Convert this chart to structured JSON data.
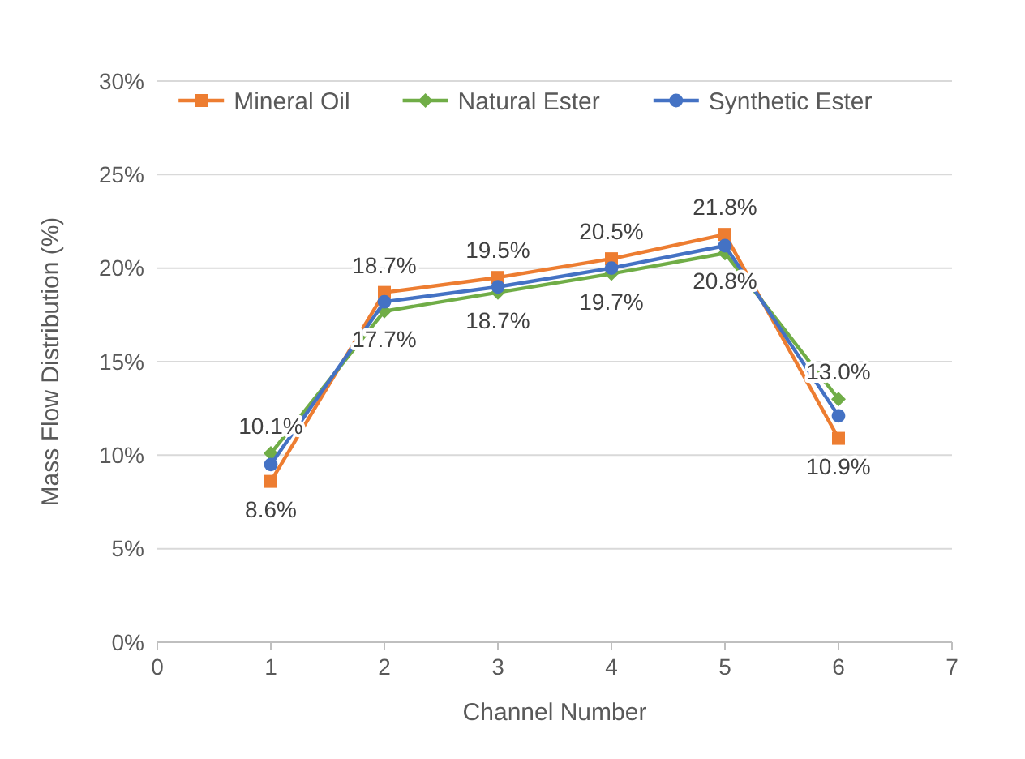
{
  "chart_data": {
    "type": "line",
    "xlabel": "Channel Number",
    "ylabel": "Mass Flow Distribution (%)",
    "x": [
      1,
      2,
      3,
      4,
      5,
      6
    ],
    "xlim": [
      0,
      7
    ],
    "xticks": [
      0,
      1,
      2,
      3,
      4,
      5,
      6,
      7
    ],
    "ylim": [
      0,
      30
    ],
    "yticks": [
      {
        "value": 0,
        "label": "0%"
      },
      {
        "value": 5,
        "label": "5%"
      },
      {
        "value": 10,
        "label": "10%"
      },
      {
        "value": 15,
        "label": "15%"
      },
      {
        "value": 20,
        "label": "20%"
      },
      {
        "value": 25,
        "label": "25%"
      },
      {
        "value": 30,
        "label": "30%"
      }
    ],
    "grid": "y",
    "legend": "top",
    "line_style": "solid",
    "series": [
      {
        "name": "Mineral Oil",
        "color": "#ed7d31",
        "marker": "square",
        "values": [
          8.6,
          18.7,
          19.5,
          20.5,
          21.8,
          10.9
        ],
        "value_labels": [
          "8.6%",
          "18.7%",
          "19.5%",
          "20.5%",
          "21.8%",
          "10.9%"
        ]
      },
      {
        "name": "Natural Ester",
        "color": "#70ad47",
        "marker": "diamond",
        "values": [
          10.1,
          17.7,
          18.7,
          19.7,
          20.8,
          13.0
        ],
        "value_labels": [
          "10.1%",
          "17.7%",
          "18.7%",
          "19.7%",
          "20.8%",
          "13.0%"
        ]
      },
      {
        "name": "Synthetic Ester",
        "color": "#4472c4",
        "marker": "circle",
        "values": [
          9.5,
          18.2,
          19.0,
          20.0,
          21.2,
          12.1
        ]
      }
    ]
  }
}
